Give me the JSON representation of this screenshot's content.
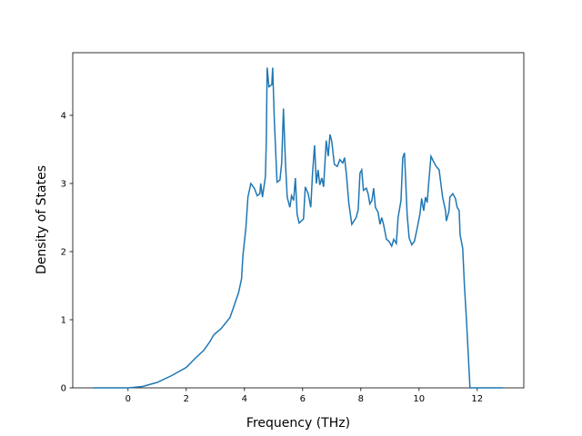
{
  "chart_data": {
    "type": "line",
    "x_label": "Frequency (THz)",
    "y_label": "Density of States",
    "x": [
      -1.2,
      0,
      0.5,
      1.0,
      1.5,
      2.0,
      2.3,
      2.6,
      2.8,
      2.95,
      3.2,
      3.5,
      3.6,
      3.8,
      3.9,
      3.95,
      4.05,
      4.12,
      4.22,
      4.34,
      4.44,
      4.53,
      4.56,
      4.62,
      4.72,
      4.75,
      4.78,
      4.84,
      4.94,
      4.97,
      5.03,
      5.12,
      5.22,
      5.28,
      5.34,
      5.41,
      5.47,
      5.56,
      5.62,
      5.69,
      5.75,
      5.81,
      5.88,
      6.03,
      6.09,
      6.19,
      6.28,
      6.34,
      6.41,
      6.47,
      6.53,
      6.59,
      6.66,
      6.72,
      6.81,
      6.88,
      6.94,
      7.0,
      7.09,
      7.19,
      7.28,
      7.38,
      7.44,
      7.5,
      7.59,
      7.69,
      7.84,
      7.91,
      7.97,
      8.03,
      8.09,
      8.19,
      8.25,
      8.31,
      8.38,
      8.44,
      8.5,
      8.59,
      8.66,
      8.72,
      8.78,
      8.88,
      8.97,
      9.06,
      9.13,
      9.22,
      9.28,
      9.38,
      9.44,
      9.5,
      9.59,
      9.66,
      9.75,
      9.84,
      9.94,
      10.03,
      10.09,
      10.16,
      10.22,
      10.28,
      10.34,
      10.41,
      10.5,
      10.59,
      10.69,
      10.75,
      10.81,
      10.91,
      10.94,
      11.03,
      11.06,
      11.16,
      11.25,
      11.31,
      11.38,
      11.41,
      11.5,
      11.56,
      11.63,
      11.69,
      11.75,
      12.88
    ],
    "series": [
      {
        "color": "#1f77b4",
        "values": [
          0,
          0,
          0.02,
          0.08,
          0.18,
          0.3,
          0.43,
          0.55,
          0.67,
          0.78,
          0.87,
          1.03,
          1.15,
          1.4,
          1.6,
          1.95,
          2.35,
          2.8,
          3.0,
          2.93,
          2.82,
          2.85,
          3.0,
          2.8,
          3.1,
          3.6,
          4.7,
          4.42,
          4.45,
          4.7,
          3.9,
          3.02,
          3.05,
          3.3,
          4.1,
          3.3,
          2.8,
          2.65,
          2.82,
          2.75,
          3.08,
          2.55,
          2.42,
          2.48,
          2.95,
          2.85,
          2.65,
          3.15,
          3.56,
          3.0,
          3.2,
          2.98,
          3.08,
          2.95,
          3.63,
          3.4,
          3.72,
          3.62,
          3.28,
          3.25,
          3.35,
          3.3,
          3.38,
          3.15,
          2.7,
          2.4,
          2.5,
          2.62,
          3.15,
          3.2,
          2.9,
          2.93,
          2.85,
          2.7,
          2.75,
          2.93,
          2.65,
          2.58,
          2.4,
          2.5,
          2.4,
          2.18,
          2.15,
          2.08,
          2.18,
          2.12,
          2.5,
          2.75,
          3.38,
          3.45,
          2.55,
          2.2,
          2.1,
          2.15,
          2.35,
          2.55,
          2.78,
          2.6,
          2.8,
          2.72,
          3.05,
          3.4,
          3.32,
          3.25,
          3.2,
          3.0,
          2.8,
          2.6,
          2.45,
          2.6,
          2.8,
          2.85,
          2.78,
          2.65,
          2.6,
          2.25,
          2.05,
          1.5,
          1.0,
          0.5,
          0,
          0
        ]
      }
    ],
    "xlim": [
      -1.9,
      13.6
    ],
    "ylim": [
      0,
      4.92
    ],
    "xticks": [
      0,
      2,
      4,
      6,
      8,
      10,
      12
    ],
    "yticks": [
      0,
      1,
      2,
      3,
      4
    ]
  }
}
